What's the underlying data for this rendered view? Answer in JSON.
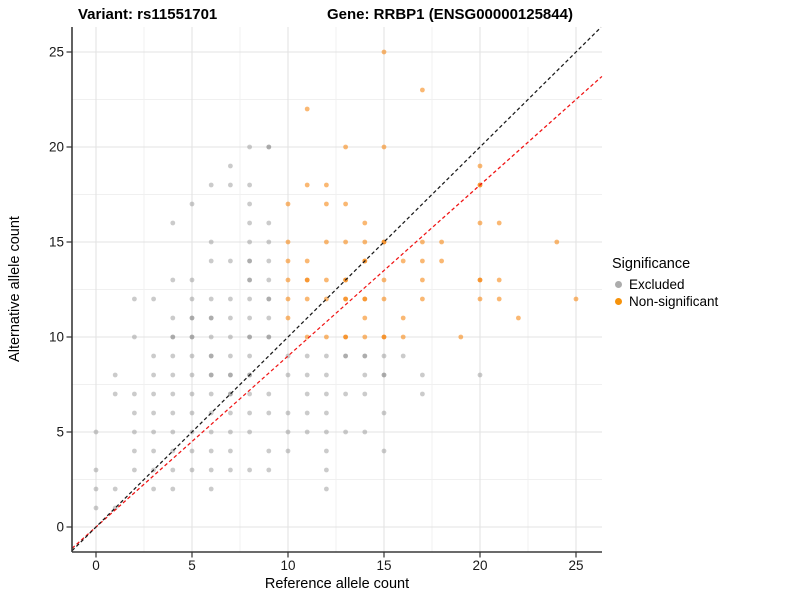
{
  "chart_data": {
    "type": "scatter",
    "title_left": "Variant: rs11551701",
    "title_right": "Gene: RRBP1 (ENSG00000125844)",
    "xlabel": "Reference allele count",
    "ylabel": "Alternative allele count",
    "x_ticks": [
      0,
      5,
      10,
      15,
      20,
      25
    ],
    "y_ticks": [
      0,
      5,
      10,
      15,
      20,
      25
    ],
    "x_minor": [
      2.5,
      7.5,
      12.5,
      17.5,
      22.5
    ],
    "y_minor": [
      2.5,
      7.5,
      12.5,
      17.5,
      22.5
    ],
    "xlim": [
      -1.25,
      26.35
    ],
    "ylim": [
      -1.3,
      26.3
    ],
    "grid": {
      "major_color": "#e3e3e3",
      "minor_color": "#f0f0f0"
    },
    "axis": {
      "line_color": "#3a3a3a",
      "tick_color": "#333333",
      "tick_label_color": "#191919"
    },
    "legend": {
      "title": "Significance",
      "position": "right",
      "items": [
        {
          "label": "Excluded",
          "color": "#acacac"
        },
        {
          "label": "Non-significant",
          "color": "#f6920a"
        }
      ]
    },
    "lines": [
      {
        "name": "red-diagonal",
        "slope": 0.9,
        "intercept": 0,
        "color": "#f01414",
        "dash": "3.6 2.6"
      },
      {
        "name": "identity-diagonal",
        "slope": 1,
        "intercept": 0,
        "color": "#1a1a1a",
        "dash": "3.6 2.6"
      }
    ],
    "series": [
      {
        "name": "Excluded",
        "color": "#828282",
        "opacity": 0.42,
        "points": [
          [
            0,
            1
          ],
          [
            1,
            1
          ],
          [
            0,
            2
          ],
          [
            1,
            2
          ],
          [
            3,
            2
          ],
          [
            4,
            2
          ],
          [
            6,
            2
          ],
          [
            12,
            2
          ],
          [
            0,
            3
          ],
          [
            2,
            3
          ],
          [
            3,
            3
          ],
          [
            4,
            3
          ],
          [
            5,
            3
          ],
          [
            6,
            3
          ],
          [
            7,
            3
          ],
          [
            8,
            3
          ],
          [
            9,
            3
          ],
          [
            12,
            3
          ],
          [
            2,
            4
          ],
          [
            3,
            4
          ],
          [
            4,
            4
          ],
          [
            5,
            4
          ],
          [
            6,
            4
          ],
          [
            7,
            4
          ],
          [
            9,
            4
          ],
          [
            10,
            4
          ],
          [
            12,
            4
          ],
          [
            15,
            4
          ],
          [
            0,
            5
          ],
          [
            2,
            5
          ],
          [
            3,
            5
          ],
          [
            4,
            5
          ],
          [
            5,
            5
          ],
          [
            6,
            5
          ],
          [
            7,
            5
          ],
          [
            8,
            5
          ],
          [
            10,
            5
          ],
          [
            11,
            5
          ],
          [
            12,
            5
          ],
          [
            13,
            5
          ],
          [
            14,
            5
          ],
          [
            2,
            6
          ],
          [
            3,
            6
          ],
          [
            4,
            6
          ],
          [
            5,
            6
          ],
          [
            6,
            6
          ],
          [
            7,
            6
          ],
          [
            8,
            6
          ],
          [
            9,
            6
          ],
          [
            10,
            6
          ],
          [
            11,
            6
          ],
          [
            12,
            6
          ],
          [
            15,
            6
          ],
          [
            1,
            7
          ],
          [
            2,
            7
          ],
          [
            3,
            7
          ],
          [
            4,
            7
          ],
          [
            5,
            7
          ],
          [
            6,
            7
          ],
          [
            7,
            7,
            2
          ],
          [
            8,
            7
          ],
          [
            9,
            7
          ],
          [
            11,
            7
          ],
          [
            12,
            7
          ],
          [
            13,
            7
          ],
          [
            14,
            7
          ],
          [
            17,
            7
          ],
          [
            1,
            8
          ],
          [
            3,
            8
          ],
          [
            4,
            8
          ],
          [
            5,
            8
          ],
          [
            6,
            8,
            2
          ],
          [
            7,
            8,
            2
          ],
          [
            8,
            8,
            2
          ],
          [
            10,
            8
          ],
          [
            11,
            8
          ],
          [
            12,
            8
          ],
          [
            14,
            8
          ],
          [
            15,
            8,
            2
          ],
          [
            17,
            8
          ],
          [
            20,
            8
          ],
          [
            3,
            9
          ],
          [
            4,
            9
          ],
          [
            5,
            9
          ],
          [
            6,
            9,
            2
          ],
          [
            7,
            9
          ],
          [
            8,
            9
          ],
          [
            10,
            9
          ],
          [
            11,
            9
          ],
          [
            12,
            9
          ],
          [
            13,
            9,
            2
          ],
          [
            14,
            9,
            2
          ],
          [
            15,
            9
          ],
          [
            16,
            9
          ],
          [
            2,
            10
          ],
          [
            4,
            10,
            2
          ],
          [
            5,
            10,
            2
          ],
          [
            6,
            10
          ],
          [
            7,
            10
          ],
          [
            8,
            10,
            2
          ],
          [
            9,
            10,
            2
          ],
          [
            4,
            11
          ],
          [
            5,
            11,
            2
          ],
          [
            6,
            11,
            2
          ],
          [
            7,
            11
          ],
          [
            8,
            11
          ],
          [
            9,
            11
          ],
          [
            2,
            12
          ],
          [
            3,
            12
          ],
          [
            5,
            12
          ],
          [
            6,
            12
          ],
          [
            7,
            12
          ],
          [
            8,
            12
          ],
          [
            9,
            12,
            2
          ],
          [
            4,
            13
          ],
          [
            5,
            13
          ],
          [
            8,
            13,
            2
          ],
          [
            9,
            13
          ],
          [
            6,
            14
          ],
          [
            7,
            14
          ],
          [
            8,
            14,
            2
          ],
          [
            9,
            14
          ],
          [
            6,
            15
          ],
          [
            8,
            15
          ],
          [
            9,
            15
          ],
          [
            4,
            16
          ],
          [
            8,
            16
          ],
          [
            9,
            16
          ],
          [
            5,
            17
          ],
          [
            8,
            17
          ],
          [
            6,
            18
          ],
          [
            7,
            18
          ],
          [
            8,
            18
          ],
          [
            7,
            19
          ],
          [
            8,
            20
          ],
          [
            9,
            20,
            2
          ]
        ]
      },
      {
        "name": "Non-significant",
        "color": "#f57d00",
        "opacity": 0.55,
        "points": [
          [
            11,
            10
          ],
          [
            12,
            10
          ],
          [
            13,
            10,
            2
          ],
          [
            14,
            10
          ],
          [
            15,
            10,
            2
          ],
          [
            16,
            10
          ],
          [
            19,
            10
          ],
          [
            10,
            11
          ],
          [
            14,
            11
          ],
          [
            16,
            11
          ],
          [
            22,
            11
          ],
          [
            10,
            12
          ],
          [
            11,
            12
          ],
          [
            12,
            12
          ],
          [
            13,
            12,
            2
          ],
          [
            14,
            12,
            2
          ],
          [
            15,
            12
          ],
          [
            17,
            12
          ],
          [
            20,
            12
          ],
          [
            21,
            12
          ],
          [
            25,
            12
          ],
          [
            10,
            13
          ],
          [
            11,
            13,
            2
          ],
          [
            12,
            13
          ],
          [
            13,
            13,
            2
          ],
          [
            15,
            13
          ],
          [
            17,
            13
          ],
          [
            20,
            13,
            2
          ],
          [
            21,
            13
          ],
          [
            10,
            14
          ],
          [
            11,
            14
          ],
          [
            14,
            14,
            2
          ],
          [
            16,
            14
          ],
          [
            17,
            14
          ],
          [
            18,
            14
          ],
          [
            10,
            15
          ],
          [
            12,
            15
          ],
          [
            13,
            15
          ],
          [
            14,
            15
          ],
          [
            15,
            15,
            2
          ],
          [
            17,
            15
          ],
          [
            18,
            15
          ],
          [
            24,
            15
          ],
          [
            14,
            16
          ],
          [
            20,
            16
          ],
          [
            21,
            16
          ],
          [
            10,
            17
          ],
          [
            12,
            17
          ],
          [
            13,
            17
          ],
          [
            11,
            18
          ],
          [
            12,
            18
          ],
          [
            20,
            18,
            2
          ],
          [
            20,
            19
          ],
          [
            13,
            20
          ],
          [
            15,
            20
          ],
          [
            11,
            22
          ],
          [
            17,
            23
          ],
          [
            15,
            25
          ]
        ]
      }
    ]
  }
}
